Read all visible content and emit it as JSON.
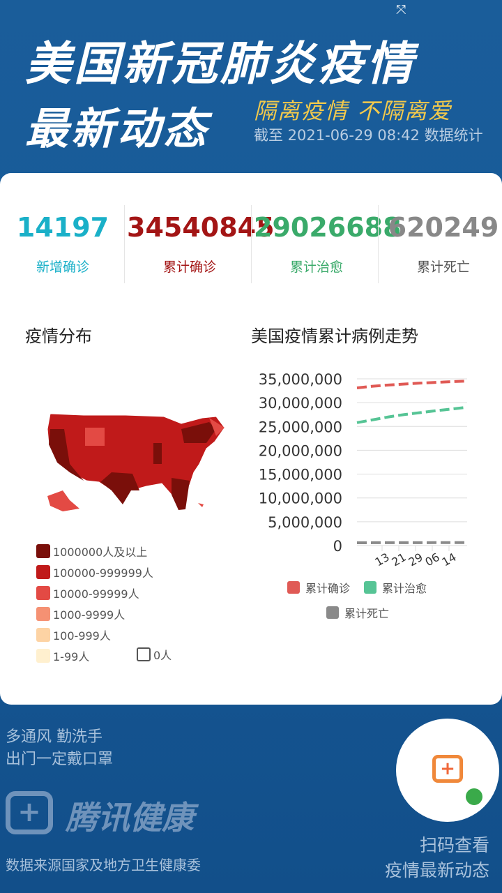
{
  "header": {
    "title_line1": "美国新冠肺炎疫情",
    "title_line2": "最新动态",
    "slogan": "隔离疫情 不隔离爱",
    "as_of": "截至 2021-06-29 08:42 数据统计"
  },
  "stats": [
    {
      "value": "14197",
      "label": "新增确诊",
      "color": "#1ab0c8"
    },
    {
      "value": "34540845",
      "label": "累计确诊",
      "color": "#a31515"
    },
    {
      "value": "29026688",
      "label": "累计治愈",
      "color": "#3aaa6a"
    },
    {
      "value": "620249",
      "label": "累计死亡",
      "color": "#888888"
    }
  ],
  "map": {
    "title": "疫情分布",
    "legend": [
      {
        "label": "1000000人及以上",
        "color": "#7a0f0a"
      },
      {
        "label": "100000-999999人",
        "color": "#c01a1a"
      },
      {
        "label": "10000-99999人",
        "color": "#e34a44"
      },
      {
        "label": "1000-9999人",
        "color": "#f59173"
      },
      {
        "label": "100-999人",
        "color": "#fdd3a4"
      },
      {
        "label": "1-99人",
        "color": "#fff0cf"
      },
      {
        "label": "0人",
        "color": "#ffffff"
      }
    ]
  },
  "chart_data": {
    "type": "line",
    "title": "美国疫情累计病例走势",
    "ylim": [
      0,
      35000000
    ],
    "yticks": [
      "35,000,000",
      "30,000,000",
      "25,000,000",
      "20,000,000",
      "15,000,000",
      "10,000,000",
      "5,000,000",
      "0"
    ],
    "xticks": [
      "13",
      "21",
      "29",
      "06",
      "14"
    ],
    "grid": true,
    "legend_placement": "bottom",
    "series": [
      {
        "name": "累计确诊",
        "color": "#e05a55",
        "values": [
          33100000,
          33450000,
          33700000,
          33900000,
          34100000,
          34250000,
          34400000,
          34540845
        ]
      },
      {
        "name": "累计治愈",
        "color": "#56c495",
        "values": [
          25800000,
          26400000,
          27000000,
          27500000,
          27900000,
          28300000,
          28650000,
          29026688
        ]
      },
      {
        "name": "累计死亡",
        "color": "#8a8a8a",
        "values": [
          590000,
          595000,
          600000,
          605000,
          610000,
          614000,
          617000,
          620249
        ]
      }
    ]
  },
  "footer": {
    "tip1": "多通风 勤洗手",
    "tip2": "出门一定戴口罩",
    "brand": "腾讯健康",
    "source": "数据来源国家及地方卫生健康委",
    "scan1": "扫码查看",
    "scan2": "疫情最新动态"
  }
}
